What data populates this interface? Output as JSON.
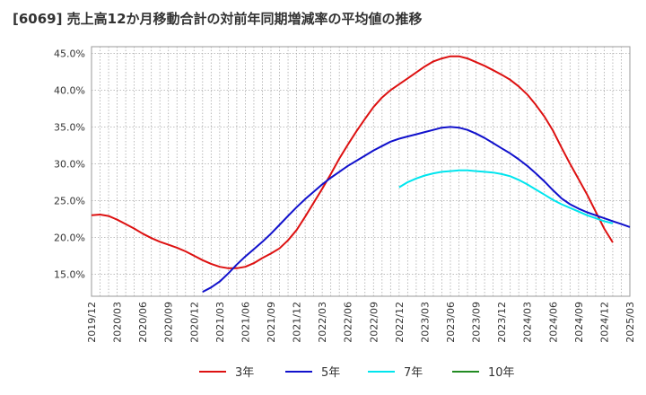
{
  "title": "[6069]  売上高12か月移動合計の対前年同期増減率の平均値の推移",
  "chart_data": {
    "type": "line",
    "title": "[6069]  売上高12か月移動合計の対前年同期増減率の平均値の推移",
    "xlabel": "",
    "ylabel": "",
    "x_ticks": [
      "2019/12",
      "2020/03",
      "2020/06",
      "2020/09",
      "2020/12",
      "2021/03",
      "2021/06",
      "2021/09",
      "2021/12",
      "2022/03",
      "2022/06",
      "2022/09",
      "2022/12",
      "2023/03",
      "2023/06",
      "2023/09",
      "2023/12",
      "2024/03",
      "2024/06",
      "2024/09",
      "2024/12",
      "2025/03"
    ],
    "y_ticks": [
      "15.0%",
      "20.0%",
      "25.0%",
      "30.0%",
      "35.0%",
      "40.0%",
      "45.0%"
    ],
    "ylim": [
      12.0,
      45.9
    ],
    "grid": true,
    "legend_position": "bottom",
    "series": [
      {
        "name": "3年",
        "color": "#dd1111",
        "points": [
          [
            "2019/12",
            23.0
          ],
          [
            "2020/01",
            23.1
          ],
          [
            "2020/02",
            22.9
          ],
          [
            "2020/03",
            22.4
          ],
          [
            "2020/04",
            21.8
          ],
          [
            "2020/05",
            21.2
          ],
          [
            "2020/06",
            20.5
          ],
          [
            "2020/07",
            19.9
          ],
          [
            "2020/08",
            19.4
          ],
          [
            "2020/09",
            19.0
          ],
          [
            "2020/10",
            18.6
          ],
          [
            "2020/11",
            18.1
          ],
          [
            "2020/12",
            17.5
          ],
          [
            "2021/01",
            16.9
          ],
          [
            "2021/02",
            16.4
          ],
          [
            "2021/03",
            16.0
          ],
          [
            "2021/04",
            15.8
          ],
          [
            "2021/05",
            15.8
          ],
          [
            "2021/06",
            16.0
          ],
          [
            "2021/07",
            16.5
          ],
          [
            "2021/08",
            17.2
          ],
          [
            "2021/09",
            17.8
          ],
          [
            "2021/10",
            18.5
          ],
          [
            "2021/11",
            19.6
          ],
          [
            "2021/12",
            21.0
          ],
          [
            "2022/01",
            22.8
          ],
          [
            "2022/02",
            24.7
          ],
          [
            "2022/03",
            26.6
          ],
          [
            "2022/04",
            28.6
          ],
          [
            "2022/05",
            30.7
          ],
          [
            "2022/06",
            32.6
          ],
          [
            "2022/07",
            34.4
          ],
          [
            "2022/08",
            36.1
          ],
          [
            "2022/09",
            37.7
          ],
          [
            "2022/10",
            39.0
          ],
          [
            "2022/11",
            40.0
          ],
          [
            "2022/12",
            40.8
          ],
          [
            "2023/01",
            41.6
          ],
          [
            "2023/02",
            42.4
          ],
          [
            "2023/03",
            43.2
          ],
          [
            "2023/04",
            43.9
          ],
          [
            "2023/05",
            44.3
          ],
          [
            "2023/06",
            44.6
          ],
          [
            "2023/07",
            44.6
          ],
          [
            "2023/08",
            44.3
          ],
          [
            "2023/09",
            43.8
          ],
          [
            "2023/10",
            43.3
          ],
          [
            "2023/11",
            42.7
          ],
          [
            "2023/12",
            42.1
          ],
          [
            "2024/01",
            41.4
          ],
          [
            "2024/02",
            40.5
          ],
          [
            "2024/03",
            39.4
          ],
          [
            "2024/04",
            38.0
          ],
          [
            "2024/05",
            36.4
          ],
          [
            "2024/06",
            34.5
          ],
          [
            "2024/07",
            32.2
          ],
          [
            "2024/08",
            30.0
          ],
          [
            "2024/09",
            27.9
          ],
          [
            "2024/10",
            25.8
          ],
          [
            "2024/11",
            23.5
          ],
          [
            "2024/12",
            21.2
          ],
          [
            "2025/01",
            19.3
          ]
        ]
      },
      {
        "name": "5年",
        "color": "#1111cc",
        "points": [
          [
            "2021/01",
            12.6
          ],
          [
            "2021/02",
            13.2
          ],
          [
            "2021/03",
            14.0
          ],
          [
            "2021/04",
            15.1
          ],
          [
            "2021/05",
            16.3
          ],
          [
            "2021/06",
            17.4
          ],
          [
            "2021/07",
            18.4
          ],
          [
            "2021/08",
            19.4
          ],
          [
            "2021/09",
            20.5
          ],
          [
            "2021/10",
            21.7
          ],
          [
            "2021/11",
            22.9
          ],
          [
            "2021/12",
            24.1
          ],
          [
            "2022/01",
            25.2
          ],
          [
            "2022/02",
            26.2
          ],
          [
            "2022/03",
            27.2
          ],
          [
            "2022/04",
            28.1
          ],
          [
            "2022/05",
            28.9
          ],
          [
            "2022/06",
            29.7
          ],
          [
            "2022/07",
            30.4
          ],
          [
            "2022/08",
            31.1
          ],
          [
            "2022/09",
            31.8
          ],
          [
            "2022/10",
            32.4
          ],
          [
            "2022/11",
            33.0
          ],
          [
            "2022/12",
            33.4
          ],
          [
            "2023/01",
            33.7
          ],
          [
            "2023/02",
            34.0
          ],
          [
            "2023/03",
            34.3
          ],
          [
            "2023/04",
            34.6
          ],
          [
            "2023/05",
            34.9
          ],
          [
            "2023/06",
            35.0
          ],
          [
            "2023/07",
            34.9
          ],
          [
            "2023/08",
            34.6
          ],
          [
            "2023/09",
            34.1
          ],
          [
            "2023/10",
            33.5
          ],
          [
            "2023/11",
            32.8
          ],
          [
            "2023/12",
            32.1
          ],
          [
            "2024/01",
            31.4
          ],
          [
            "2024/02",
            30.6
          ],
          [
            "2024/03",
            29.7
          ],
          [
            "2024/04",
            28.7
          ],
          [
            "2024/05",
            27.6
          ],
          [
            "2024/06",
            26.4
          ],
          [
            "2024/07",
            25.3
          ],
          [
            "2024/08",
            24.5
          ],
          [
            "2024/09",
            23.9
          ],
          [
            "2024/10",
            23.4
          ],
          [
            "2024/11",
            23.0
          ],
          [
            "2024/12",
            22.6
          ],
          [
            "2025/01",
            22.2
          ],
          [
            "2025/02",
            21.8
          ],
          [
            "2025/03",
            21.4
          ]
        ]
      },
      {
        "name": "7年",
        "color": "#00e5ee",
        "points": [
          [
            "2022/12",
            26.8
          ],
          [
            "2023/01",
            27.5
          ],
          [
            "2023/02",
            28.0
          ],
          [
            "2023/03",
            28.4
          ],
          [
            "2023/04",
            28.7
          ],
          [
            "2023/05",
            28.9
          ],
          [
            "2023/06",
            29.0
          ],
          [
            "2023/07",
            29.1
          ],
          [
            "2023/08",
            29.1
          ],
          [
            "2023/09",
            29.0
          ],
          [
            "2023/10",
            28.9
          ],
          [
            "2023/11",
            28.8
          ],
          [
            "2023/12",
            28.6
          ],
          [
            "2024/01",
            28.3
          ],
          [
            "2024/02",
            27.8
          ],
          [
            "2024/03",
            27.2
          ],
          [
            "2024/04",
            26.5
          ],
          [
            "2024/05",
            25.8
          ],
          [
            "2024/06",
            25.1
          ],
          [
            "2024/07",
            24.5
          ],
          [
            "2024/08",
            24.0
          ],
          [
            "2024/09",
            23.5
          ],
          [
            "2024/10",
            23.0
          ],
          [
            "2024/11",
            22.6
          ],
          [
            "2024/12",
            22.2
          ],
          [
            "2025/01",
            21.9
          ]
        ]
      },
      {
        "name": "10年",
        "color": "#228b22",
        "points": []
      }
    ]
  }
}
